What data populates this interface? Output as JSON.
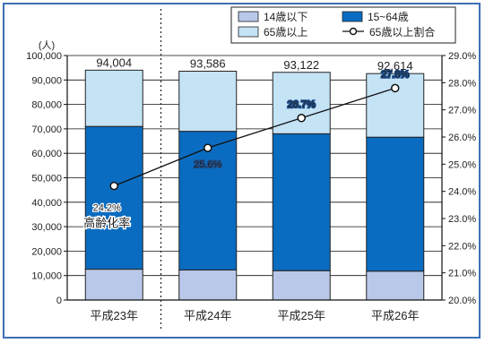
{
  "chart_data": {
    "type": "bar",
    "stacked": true,
    "categories": [
      "平成23年",
      "平成24年",
      "平成25年",
      "平成26年"
    ],
    "series": [
      {
        "name": "14歳以下",
        "values": [
          12600,
          12300,
          12000,
          11800
        ],
        "color": "#b9c8e8"
      },
      {
        "name": "15~64歳",
        "values": [
          58400,
          56700,
          56000,
          54800
        ],
        "color": "#0a6cc0"
      },
      {
        "name": "65歳以上",
        "values": [
          23004,
          24586,
          25122,
          26014
        ],
        "color": "#c4e3f5"
      }
    ],
    "totals": [
      "94,004",
      "93,586",
      "93,122",
      "92,614"
    ],
    "line": {
      "name": "65歳以上割合",
      "values": [
        24.2,
        25.6,
        26.7,
        27.8
      ],
      "labels": [
        "24.2%",
        "25.6%",
        "26.7%",
        "27.8%"
      ]
    },
    "annotation": "高齢化率",
    "ylabel_left": "(人)",
    "ylim_left": [
      0,
      100000
    ],
    "ylim_right": [
      20.0,
      29.0
    ],
    "yticks_left": [
      "0",
      "10,000",
      "20,000",
      "30,000",
      "40,000",
      "50,000",
      "60,000",
      "70,000",
      "80,000",
      "90,000",
      "100,000"
    ],
    "yticks_right": [
      "20.0%",
      "21.0%",
      "22.0%",
      "23.0%",
      "24.0%",
      "25.0%",
      "26.0%",
      "27.0%",
      "28.0%",
      "29.0%"
    ],
    "grid": true,
    "legend_position": "top-right",
    "border_color": "#3d6fb5"
  }
}
